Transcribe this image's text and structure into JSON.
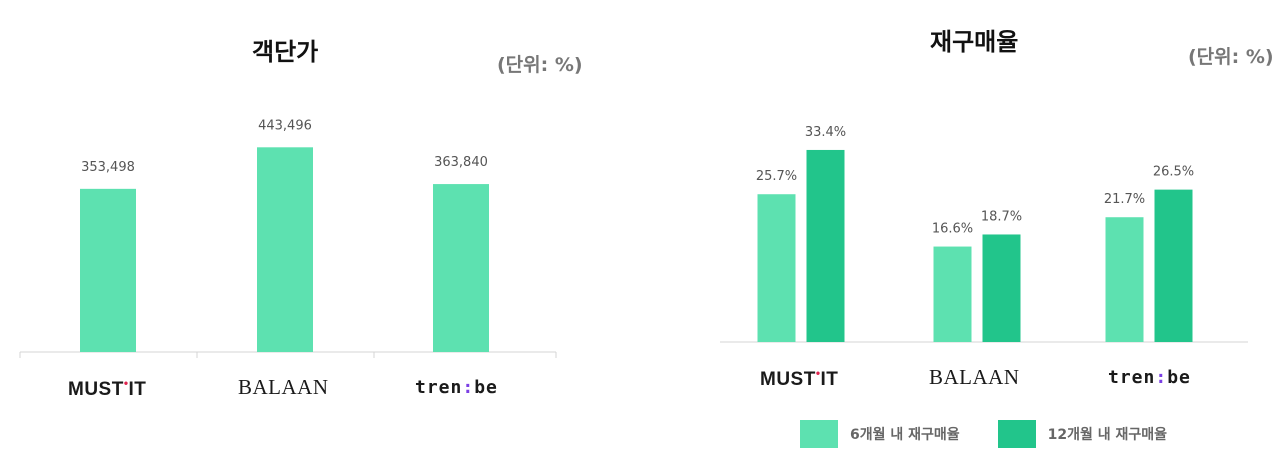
{
  "chart_data": [
    {
      "type": "bar",
      "title": "객단가",
      "unit_label": "(단위: %)",
      "categories": [
        "MUST'IT",
        "BALAAN",
        "tren:be"
      ],
      "values": [
        353498,
        443496,
        363840
      ],
      "value_labels": [
        "353,498",
        "443,496",
        "363,840"
      ],
      "ylim": [
        0,
        520000
      ],
      "grid": false,
      "colors": [
        "#5de1b0"
      ]
    },
    {
      "type": "bar",
      "title": "재구매율",
      "unit_label": "(단위: %)",
      "categories": [
        "MUST'IT",
        "BALAAN",
        "tren:be"
      ],
      "series": [
        {
          "name": "6개월 내 재구매율",
          "values": [
            25.7,
            16.6,
            21.7
          ],
          "labels": [
            "25.7%",
            "16.6%",
            "21.7%"
          ],
          "color": "#5de1b0"
        },
        {
          "name": "12개월 내 재구매율",
          "values": [
            33.4,
            18.7,
            26.5
          ],
          "labels": [
            "33.4%",
            "18.7%",
            "26.5%"
          ],
          "color": "#22c58b"
        }
      ],
      "ylim": [
        0,
        40
      ],
      "grid": false,
      "legend_position": "bottom"
    }
  ]
}
